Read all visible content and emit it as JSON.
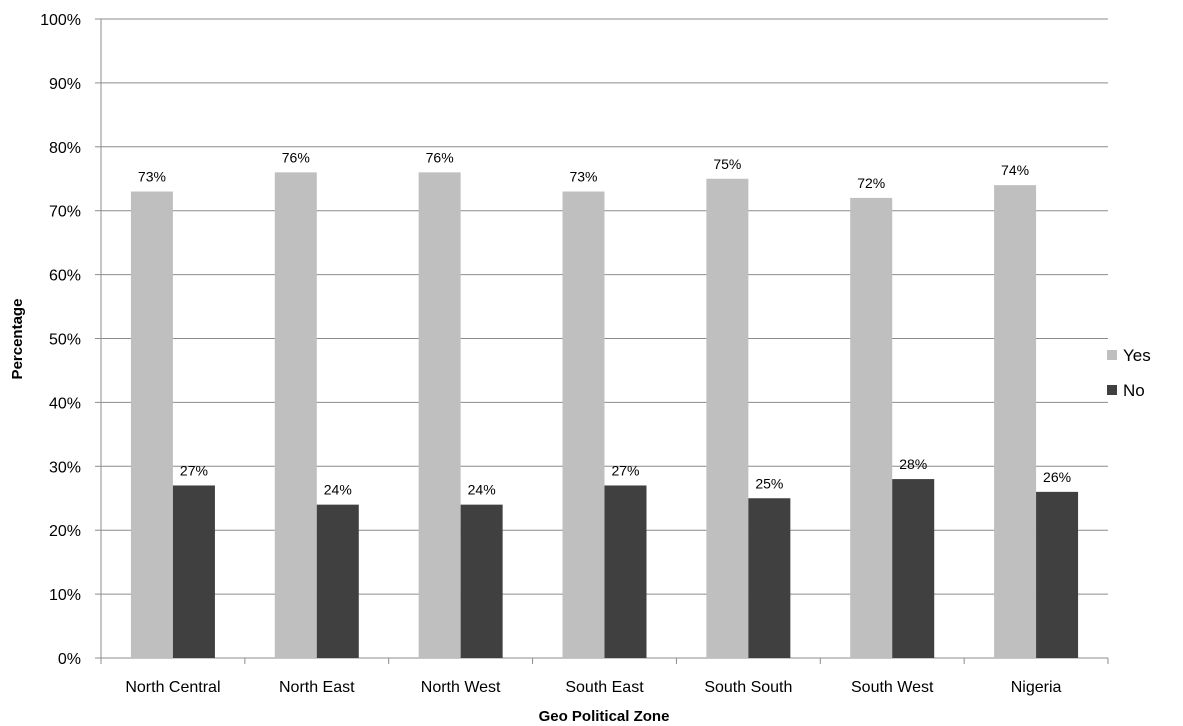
{
  "chart_data": {
    "type": "bar",
    "title": "",
    "xlabel": "Geo Political Zone",
    "ylabel": "Percentage",
    "ylim": [
      0,
      100
    ],
    "yticks": [
      "0%",
      "10%",
      "20%",
      "30%",
      "40%",
      "50%",
      "60%",
      "70%",
      "80%",
      "90%",
      "100%"
    ],
    "grid": true,
    "legend_position": "right",
    "categories": [
      "North Central",
      "North East",
      "North West",
      "South East",
      "South South",
      "South West",
      "Nigeria"
    ],
    "series": [
      {
        "name": "Yes",
        "color": "#bfbfbf",
        "values": [
          73,
          76,
          76,
          73,
          75,
          72,
          74
        ],
        "labels": [
          "73%",
          "76%",
          "76%",
          "73%",
          "75%",
          "72%",
          "74%"
        ]
      },
      {
        "name": "No",
        "color": "#404040",
        "values": [
          27,
          24,
          24,
          27,
          25,
          28,
          26
        ],
        "labels": [
          "27%",
          "24%",
          "24%",
          "27%",
          "25%",
          "28%",
          "26%"
        ]
      }
    ]
  }
}
